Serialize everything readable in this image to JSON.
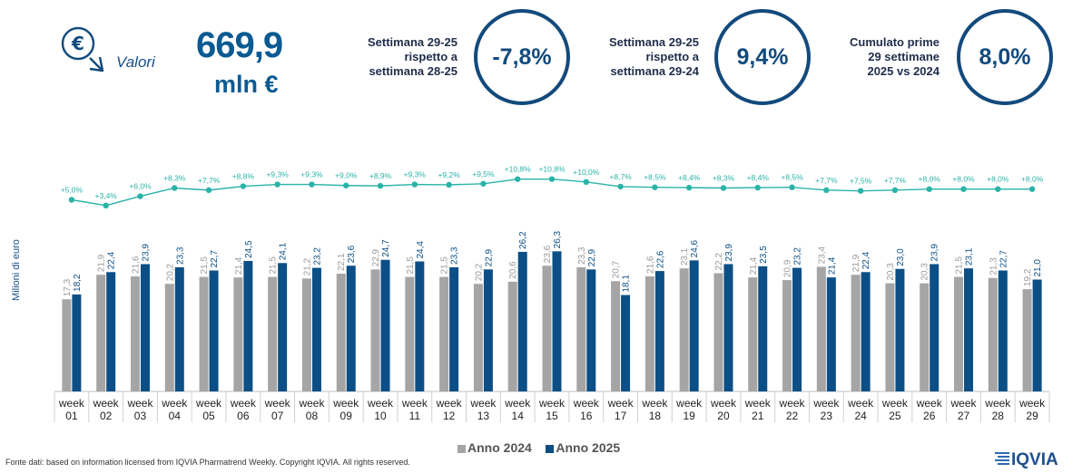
{
  "kpi": {
    "icon": "euro-down-arrow-icon",
    "label": "Valori",
    "value": "669,9",
    "unit": "mln €"
  },
  "comparisons": [
    {
      "text_lines": [
        "Settimana 29-25",
        "rispetto a",
        "settimana 28-25"
      ],
      "value": "-7,8%"
    },
    {
      "text_lines": [
        "Settimana 29-25",
        "rispetto a",
        "settimana 29-24"
      ],
      "value": "9,4%"
    },
    {
      "text_lines": [
        "Cumulato prime",
        "29 settimane",
        "2025 vs 2024"
      ],
      "value": "8,0%"
    }
  ],
  "colors": {
    "anno2024": "#a5a5a5",
    "anno2025": "#0b4f86",
    "growth_line": "#2ab3a8",
    "circle": "#134a7c"
  },
  "chart_data": {
    "type": "bar",
    "ylabel": "Milioni di euro",
    "categories": [
      "week 01",
      "week 02",
      "week 03",
      "week 04",
      "week 05",
      "week 06",
      "week 07",
      "week 08",
      "week 09",
      "week 10",
      "week 11",
      "week 12",
      "week 13",
      "week 14",
      "week 15",
      "week 16",
      "week 17",
      "week 18",
      "week 19",
      "week 20",
      "week 21",
      "week 22",
      "week 23",
      "week 24",
      "week 25",
      "week 26",
      "week 27",
      "week 28",
      "week 29"
    ],
    "series": [
      {
        "name": "Anno 2024",
        "values": [
          "17,3",
          "21,9",
          "21,6",
          "20,2",
          "21,5",
          "21,4",
          "21,5",
          "21,2",
          "22,1",
          "22,9",
          "21,5",
          "21,5",
          "20,2",
          "20,6",
          "23,6",
          "23,3",
          "20,7",
          "21,6",
          "23,1",
          "22,2",
          "21,4",
          "20,9",
          "23,4",
          "21,9",
          "20,3",
          "20,3",
          "21,5",
          "21,3",
          "19,2"
        ]
      },
      {
        "name": "Anno 2025",
        "values": [
          "18,2",
          "22,4",
          "23,9",
          "23,3",
          "22,7",
          "24,5",
          "24,1",
          "23,2",
          "23,6",
          "24,7",
          "24,4",
          "23,3",
          "22,9",
          "26,2",
          "26,3",
          "22,9",
          "18,1",
          "22,6",
          "24,6",
          "23,9",
          "23,5",
          "23,2",
          "21,4",
          "22,4",
          "23,0",
          "23,9",
          "23,1",
          "22,7",
          "21,0"
        ]
      }
    ],
    "growth_labels": [
      "+5,0%",
      "+3,4%",
      "+6,0%",
      "+8,3%",
      "+7,7%",
      "+8,8%",
      "+9,3%",
      "+9,3%",
      "+9,0%",
      "+8,9%",
      "+9,3%",
      "+9,2%",
      "+9,5%",
      "+10,8%",
      "+10,8%",
      "+10,0%",
      "+8,7%",
      "+8,5%",
      "+8,4%",
      "+8,3%",
      "+8,4%",
      "+8,5%",
      "+7,7%",
      "+7,5%",
      "+7,7%",
      "+8,0%",
      "+8,0%",
      "+8,0%",
      "+8,0%"
    ],
    "growth_values": [
      5.0,
      3.4,
      6.0,
      8.3,
      7.7,
      8.8,
      9.3,
      9.3,
      9.0,
      8.9,
      9.3,
      9.2,
      9.5,
      10.8,
      10.8,
      10.0,
      8.7,
      8.5,
      8.4,
      8.3,
      8.4,
      8.5,
      7.7,
      7.5,
      7.7,
      8.0,
      8.0,
      8.0,
      8.0
    ],
    "ylim": [
      0,
      30
    ],
    "grid": false,
    "legend_position": "bottom"
  },
  "legend": {
    "items": [
      "Anno 2024",
      "Anno 2025"
    ]
  },
  "footer": {
    "source": "Fonte dati: based on information licensed from IQVIA Pharmatrend Weekly. Copyright IQVIA. All rights reserved.",
    "logo_text": "IQVIA"
  }
}
